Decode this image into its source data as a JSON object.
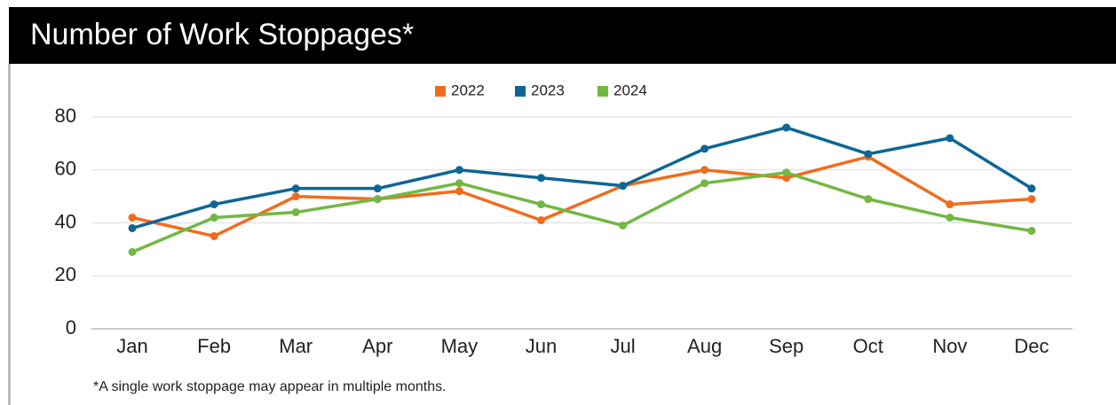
{
  "chart_data": {
    "type": "line",
    "title": "Number of Work Stoppages*",
    "note": "*A single work stoppage may appear in multiple months.",
    "categories": [
      "Jan",
      "Feb",
      "Mar",
      "Apr",
      "May",
      "Jun",
      "Jul",
      "Aug",
      "Sep",
      "Oct",
      "Nov",
      "Dec"
    ],
    "series": [
      {
        "name": "2022",
        "color": "#f26b1d",
        "values": [
          42,
          35,
          50,
          49,
          52,
          41,
          54,
          60,
          57,
          65,
          47,
          49
        ]
      },
      {
        "name": "2023",
        "color": "#0d6695",
        "values": [
          38,
          47,
          53,
          53,
          60,
          57,
          54,
          68,
          76,
          66,
          72,
          53
        ]
      },
      {
        "name": "2024",
        "color": "#72b843",
        "values": [
          29,
          42,
          44,
          49,
          55,
          47,
          39,
          55,
          59,
          49,
          42,
          37
        ]
      }
    ],
    "ylim": [
      0,
      80
    ],
    "yticks": [
      0,
      20,
      40,
      60,
      80
    ],
    "grid": true,
    "legend": "top"
  }
}
